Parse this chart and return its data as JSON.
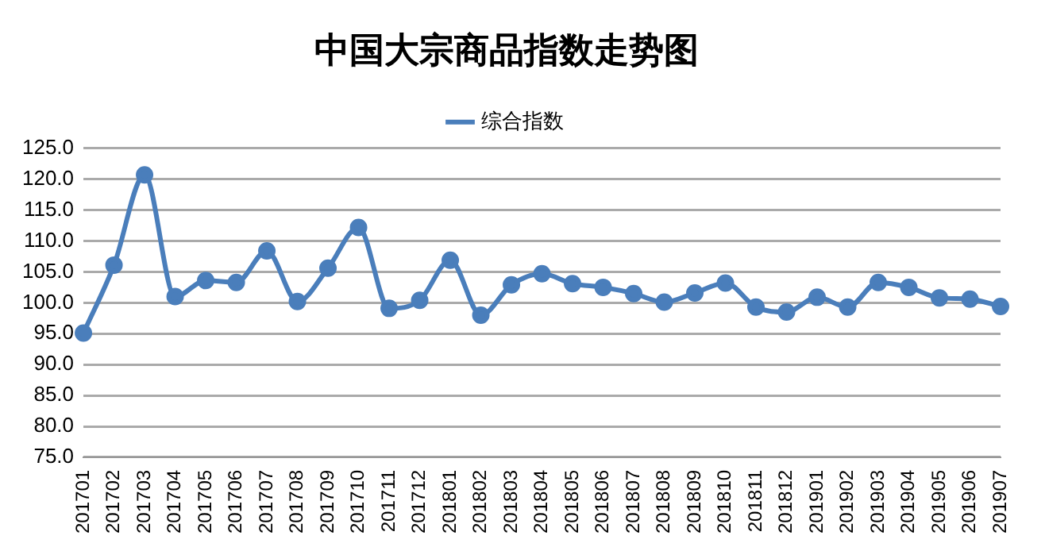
{
  "chart_data": {
    "type": "line",
    "title": "中国大宗商品指数走势图",
    "categories": [
      "201701",
      "201702",
      "201703",
      "201704",
      "201705",
      "201706",
      "201707",
      "201708",
      "201709",
      "201710",
      "201711",
      "201712",
      "201801",
      "201802",
      "201803",
      "201804",
      "201805",
      "201806",
      "201807",
      "201808",
      "201809",
      "201810",
      "201811",
      "201812",
      "201901",
      "201902",
      "201903",
      "201904",
      "201905",
      "201906",
      "201907"
    ],
    "series": [
      {
        "name": "综合指数",
        "color": "#4a7ebb",
        "values": [
          95.1,
          106.1,
          120.7,
          101.0,
          103.6,
          103.3,
          108.4,
          100.2,
          105.6,
          112.2,
          99.1,
          100.4,
          106.9,
          98.0,
          102.9,
          104.7,
          103.1,
          102.5,
          101.5,
          100.1,
          101.6,
          103.2,
          99.3,
          98.5,
          100.9,
          99.3,
          103.3,
          102.5,
          100.8,
          100.6,
          99.4
        ]
      }
    ],
    "ylim": [
      75,
      125
    ],
    "yticks": [
      {
        "value": 75,
        "label": "75.0"
      },
      {
        "value": 80,
        "label": "80.0"
      },
      {
        "value": 85,
        "label": "85.0"
      },
      {
        "value": 90,
        "label": "90.0"
      },
      {
        "value": 95,
        "label": "95.0"
      },
      {
        "value": 100,
        "label": "100.0"
      },
      {
        "value": 105,
        "label": "105.0"
      },
      {
        "value": 110,
        "label": "110.0"
      },
      {
        "value": 115,
        "label": "115.0"
      },
      {
        "value": 120,
        "label": "120.0"
      },
      {
        "value": 125,
        "label": "125.0"
      }
    ],
    "grid": "y",
    "legend": "top",
    "marker": "circle",
    "line_style": "solid"
  }
}
